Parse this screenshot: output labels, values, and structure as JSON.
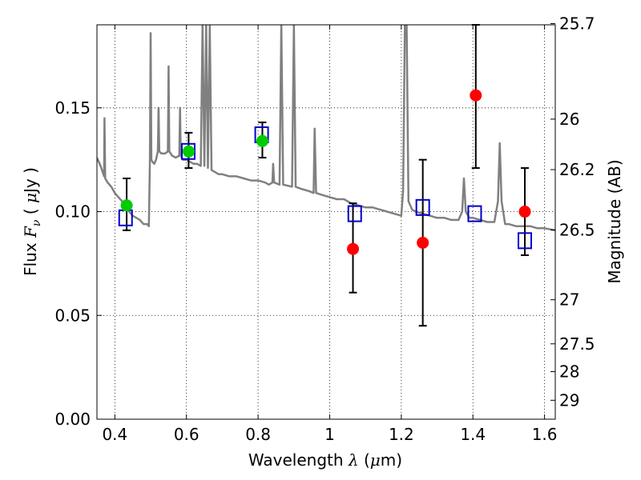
{
  "chart_data": {
    "type": "scatter",
    "xlim": [
      0.35,
      1.63
    ],
    "ylim": [
      0.0,
      0.19
    ],
    "grid": true,
    "xlabel_text": "Wavelength",
    "xlabel_symbol": "λ",
    "xlabel_unit_open": "(",
    "xlabel_unit_greek": "μ",
    "xlabel_unit_rest": "m)",
    "ylabel_text": "Flux",
    "ylabel_symbol": "F",
    "ylabel_sub": "ν",
    "ylabel_unit_open": "(",
    "ylabel_unit_greek": "μ",
    "ylabel_unit_rest": "Jy )",
    "y2label": "Magnitude (AB)",
    "x_ticks": [
      {
        "value": 0.4,
        "label": "0.4"
      },
      {
        "value": 0.6,
        "label": "0.6"
      },
      {
        "value": 0.8,
        "label": "0.8"
      },
      {
        "value": 1.0,
        "label": "1"
      },
      {
        "value": 1.2,
        "label": "1.2"
      },
      {
        "value": 1.4,
        "label": "1.4"
      },
      {
        "value": 1.6,
        "label": "1.6"
      }
    ],
    "y_ticks": [
      {
        "value": 0.0,
        "label": "0.00"
      },
      {
        "value": 0.05,
        "label": "0.05"
      },
      {
        "value": 0.1,
        "label": "0.10"
      },
      {
        "value": 0.15,
        "label": "0.15"
      }
    ],
    "y2_ticks": [
      {
        "mag": 25.7,
        "label": "25.7"
      },
      {
        "mag": 26,
        "label": "26"
      },
      {
        "mag": 26.2,
        "label": "26.2"
      },
      {
        "mag": 26.5,
        "label": "26.5"
      },
      {
        "mag": 27,
        "label": "27"
      },
      {
        "mag": 27.5,
        "label": "27.5"
      },
      {
        "mag": 28,
        "label": "28"
      },
      {
        "mag": 29,
        "label": "29"
      }
    ],
    "model_spectrum": {
      "color": "#808080",
      "points": [
        [
          0.35,
          0.126
        ],
        [
          0.36,
          0.122
        ],
        [
          0.37,
          0.117
        ],
        [
          0.371,
          0.145
        ],
        [
          0.373,
          0.116
        ],
        [
          0.38,
          0.114
        ],
        [
          0.39,
          0.112
        ],
        [
          0.4,
          0.109
        ],
        [
          0.41,
          0.107
        ],
        [
          0.42,
          0.105
        ],
        [
          0.43,
          0.103
        ],
        [
          0.44,
          0.1
        ],
        [
          0.45,
          0.098
        ],
        [
          0.46,
          0.097
        ],
        [
          0.47,
          0.096
        ],
        [
          0.48,
          0.094
        ],
        [
          0.49,
          0.094
        ],
        [
          0.495,
          0.093
        ],
        [
          0.498,
          0.125
        ],
        [
          0.5,
          0.186
        ],
        [
          0.502,
          0.125
        ],
        [
          0.505,
          0.124
        ],
        [
          0.51,
          0.123
        ],
        [
          0.515,
          0.125
        ],
        [
          0.52,
          0.129
        ],
        [
          0.522,
          0.15
        ],
        [
          0.524,
          0.129
        ],
        [
          0.53,
          0.128
        ],
        [
          0.54,
          0.128
        ],
        [
          0.548,
          0.129
        ],
        [
          0.55,
          0.17
        ],
        [
          0.552,
          0.129
        ],
        [
          0.56,
          0.127
        ],
        [
          0.57,
          0.126
        ],
        [
          0.58,
          0.127
        ],
        [
          0.582,
          0.15
        ],
        [
          0.584,
          0.127
        ],
        [
          0.59,
          0.125
        ],
        [
          0.6,
          0.125
        ],
        [
          0.61,
          0.124
        ],
        [
          0.62,
          0.123
        ],
        [
          0.63,
          0.123
        ],
        [
          0.64,
          0.122
        ],
        [
          0.645,
          0.19
        ],
        [
          0.65,
          0.122
        ],
        [
          0.655,
          0.19
        ],
        [
          0.66,
          0.121
        ],
        [
          0.665,
          0.19
        ],
        [
          0.67,
          0.12
        ],
        [
          0.68,
          0.119
        ],
        [
          0.69,
          0.118
        ],
        [
          0.7,
          0.118
        ],
        [
          0.72,
          0.117
        ],
        [
          0.74,
          0.117
        ],
        [
          0.76,
          0.116
        ],
        [
          0.78,
          0.115
        ],
        [
          0.8,
          0.115
        ],
        [
          0.82,
          0.114
        ],
        [
          0.83,
          0.113
        ],
        [
          0.84,
          0.114
        ],
        [
          0.842,
          0.123
        ],
        [
          0.845,
          0.114
        ],
        [
          0.86,
          0.113
        ],
        [
          0.865,
          0.19
        ],
        [
          0.87,
          0.113
        ],
        [
          0.895,
          0.112
        ],
        [
          0.9,
          0.19
        ],
        [
          0.905,
          0.112
        ],
        [
          0.92,
          0.111
        ],
        [
          0.94,
          0.11
        ],
        [
          0.955,
          0.109
        ],
        [
          0.958,
          0.14
        ],
        [
          0.962,
          0.109
        ],
        [
          0.98,
          0.108
        ],
        [
          1.0,
          0.107
        ],
        [
          1.02,
          0.106
        ],
        [
          1.04,
          0.106
        ],
        [
          1.06,
          0.104
        ],
        [
          1.08,
          0.103
        ],
        [
          1.1,
          0.102
        ],
        [
          1.12,
          0.102
        ],
        [
          1.14,
          0.101
        ],
        [
          1.16,
          0.1
        ],
        [
          1.18,
          0.099
        ],
        [
          1.2,
          0.098
        ],
        [
          1.205,
          0.11
        ],
        [
          1.21,
          0.19
        ],
        [
          1.215,
          0.19
        ],
        [
          1.22,
          0.105
        ],
        [
          1.23,
          0.101
        ],
        [
          1.24,
          0.1
        ],
        [
          1.26,
          0.099
        ],
        [
          1.28,
          0.098
        ],
        [
          1.3,
          0.097
        ],
        [
          1.32,
          0.097
        ],
        [
          1.34,
          0.096
        ],
        [
          1.36,
          0.096
        ],
        [
          1.37,
          0.1
        ],
        [
          1.375,
          0.116
        ],
        [
          1.38,
          0.1
        ],
        [
          1.39,
          0.097
        ],
        [
          1.4,
          0.097
        ],
        [
          1.42,
          0.096
        ],
        [
          1.44,
          0.095
        ],
        [
          1.46,
          0.095
        ],
        [
          1.47,
          0.105
        ],
        [
          1.475,
          0.133
        ],
        [
          1.48,
          0.105
        ],
        [
          1.49,
          0.094
        ],
        [
          1.5,
          0.094
        ],
        [
          1.52,
          0.093
        ],
        [
          1.54,
          0.093
        ],
        [
          1.56,
          0.093
        ],
        [
          1.58,
          0.092
        ],
        [
          1.6,
          0.092
        ],
        [
          1.63,
          0.091
        ]
      ]
    },
    "series": [
      {
        "marker": "square",
        "color": "#0000cc",
        "points": [
          {
            "x": 0.43,
            "y": 0.097
          },
          {
            "x": 0.605,
            "y": 0.129
          },
          {
            "x": 0.81,
            "y": 0.137
          },
          {
            "x": 1.07,
            "y": 0.099
          },
          {
            "x": 1.26,
            "y": 0.102
          },
          {
            "x": 1.405,
            "y": 0.099
          },
          {
            "x": 1.545,
            "y": 0.086
          }
        ]
      },
      {
        "marker": "circle",
        "color": "#00cc00",
        "points": [
          {
            "x": 0.433,
            "y": 0.103,
            "ylo": 0.091,
            "yhi": 0.116
          },
          {
            "x": 0.606,
            "y": 0.129,
            "ylo": 0.121,
            "yhi": 0.138
          },
          {
            "x": 0.812,
            "y": 0.134,
            "ylo": 0.126,
            "yhi": 0.143
          }
        ]
      },
      {
        "marker": "circle",
        "color": "#ff0000",
        "points": [
          {
            "x": 1.065,
            "y": 0.082,
            "ylo": 0.061,
            "yhi": 0.104
          },
          {
            "x": 1.26,
            "y": 0.085,
            "ylo": 0.045,
            "yhi": 0.125
          },
          {
            "x": 1.408,
            "y": 0.156,
            "ylo": 0.121,
            "yhi": 0.19
          },
          {
            "x": 1.545,
            "y": 0.1,
            "ylo": 0.079,
            "yhi": 0.121
          }
        ]
      }
    ]
  }
}
